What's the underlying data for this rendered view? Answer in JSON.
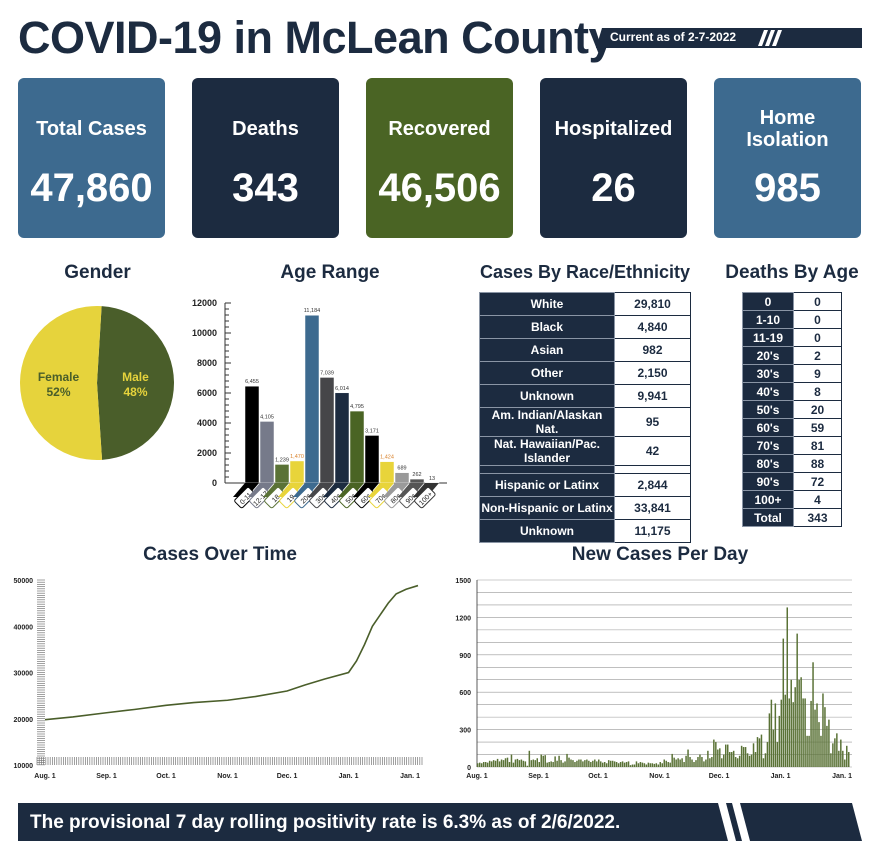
{
  "header": {
    "title": "COVID-19 in McLean County",
    "current_as_of": "Current as of 2-7-2022"
  },
  "cards": [
    {
      "label": "Total Cases",
      "value": "47,860",
      "color": "#3d6a8f"
    },
    {
      "label": "Deaths",
      "value": "343",
      "color": "#1c2b40"
    },
    {
      "label": "Recovered",
      "value": "46,506",
      "color": "#4a6424"
    },
    {
      "label": "Hospitalized",
      "value": "26",
      "color": "#1c2b40"
    },
    {
      "label": "Home Isolation",
      "value": "985",
      "color": "#3d6a8f"
    }
  ],
  "tables": {
    "race": {
      "title": "Cases By Race/Ethnicity",
      "rows": [
        [
          "White",
          "29,810"
        ],
        [
          "Black",
          "4,840"
        ],
        [
          "Asian",
          "982"
        ],
        [
          "Other",
          "2,150"
        ],
        [
          "Unknown",
          "9,941"
        ],
        [
          "Am. Indian/Alaskan Nat.",
          "95"
        ],
        [
          "Nat. Hawaiian/Pac. Islander",
          "42"
        ]
      ],
      "ethnicity_rows": [
        [
          "Hispanic or Latinx",
          "2,844"
        ],
        [
          "Non-Hispanic or Latinx",
          "33,841"
        ],
        [
          "Unknown",
          "11,175"
        ]
      ]
    },
    "deaths_by_age": {
      "title": "Deaths By Age",
      "rows": [
        [
          "0",
          "0"
        ],
        [
          "1-10",
          "0"
        ],
        [
          "11-19",
          "0"
        ],
        [
          "20's",
          "2"
        ],
        [
          "30's",
          "9"
        ],
        [
          "40's",
          "8"
        ],
        [
          "50's",
          "20"
        ],
        [
          "60's",
          "59"
        ],
        [
          "70's",
          "81"
        ],
        [
          "80's",
          "88"
        ],
        [
          "90's",
          "72"
        ],
        [
          "100+",
          "4"
        ],
        [
          "Total",
          "343"
        ]
      ]
    }
  },
  "footer": {
    "text": "The provisional 7 day rolling positivity rate is 6.3% as of 2/6/2022."
  },
  "chart_data": [
    {
      "type": "pie",
      "title": "Gender",
      "slices": [
        {
          "label": "Male",
          "value": 48,
          "display": "48%",
          "color": "#4a5e2a"
        },
        {
          "label": "Female",
          "value": 52,
          "display": "52%",
          "color": "#e6d33c"
        }
      ]
    },
    {
      "type": "bar",
      "title": "Age Range",
      "ylim": [
        0,
        12000
      ],
      "yticks": [
        0,
        2000,
        4000,
        6000,
        8000,
        10000,
        12000
      ],
      "categories": [
        "0-11",
        "12-17",
        "18",
        "19",
        "20s",
        "30s",
        "40s",
        "50s",
        "60s",
        "70s",
        "80s",
        "90s",
        "100+"
      ],
      "values": [
        6455,
        4105,
        1239,
        1470,
        11184,
        7039,
        6014,
        4795,
        3171,
        1424,
        689,
        262,
        13
      ],
      "labels": [
        "6,455",
        "4,105",
        "1,239",
        "1,470",
        "11,184",
        "7,039",
        "6,014",
        "4,795",
        "3,171",
        "1,424",
        "689",
        "262",
        "13"
      ],
      "colors": [
        "#000000",
        "#767a8a",
        "#5a7236",
        "#e8d43a",
        "#3d6a8f",
        "#464649",
        "#1c2b40",
        "#4a6424",
        "#000000",
        "#e8d43a",
        "#9a9a9a",
        "#555555",
        "#333333"
      ]
    },
    {
      "type": "line",
      "title": "Cases Over Time",
      "ylim": [
        10000,
        50000
      ],
      "yticks": [
        10000,
        20000,
        30000,
        40000,
        50000
      ],
      "xticks": [
        "Aug. 1",
        "Sep. 1",
        "Oct. 1",
        "Nov. 1",
        "Dec. 1",
        "Jan. 1",
        "Jan. 1"
      ],
      "points": [
        [
          "2021-08-01",
          19800
        ],
        [
          "2021-08-15",
          20400
        ],
        [
          "2021-09-01",
          21300
        ],
        [
          "2021-09-15",
          22000
        ],
        [
          "2021-10-01",
          22900
        ],
        [
          "2021-10-15",
          23500
        ],
        [
          "2021-11-01",
          24000
        ],
        [
          "2021-11-15",
          24800
        ],
        [
          "2021-12-01",
          26000
        ],
        [
          "2021-12-10",
          27300
        ],
        [
          "2021-12-20",
          28600
        ],
        [
          "2022-01-01",
          30000
        ],
        [
          "2022-01-05",
          32500
        ],
        [
          "2022-01-09",
          36000
        ],
        [
          "2022-01-13",
          40000
        ],
        [
          "2022-01-17",
          42500
        ],
        [
          "2022-01-21",
          45000
        ],
        [
          "2022-01-25",
          47000
        ],
        [
          "2022-01-30",
          48000
        ],
        [
          "2022-02-05",
          48800
        ]
      ],
      "color": "#4a5e2a"
    },
    {
      "type": "bar",
      "title": "New Cases Per Day",
      "ylim": [
        0,
        1500
      ],
      "yticks": [
        0,
        300,
        600,
        900,
        1200,
        1500
      ],
      "xticks": [
        "Aug. 1",
        "Sep. 1",
        "Oct. 1",
        "Nov. 1",
        "Dec. 1",
        "Jan. 1",
        "Jan. 1"
      ],
      "daily_by_month": {
        "Aug": [
          30,
          35,
          30,
          40,
          40,
          35,
          50,
          45,
          55,
          50,
          65,
          45,
          60,
          55,
          70,
          75,
          40,
          100,
          35,
          60,
          65,
          55,
          60,
          50,
          45,
          10,
          130,
          55,
          60,
          55,
          70
        ],
        "Sep": [
          40,
          100,
          90,
          95,
          35,
          40,
          45,
          40,
          85,
          50,
          90,
          55,
          35,
          45,
          105,
          75,
          60,
          55,
          40,
          50,
          60,
          60,
          45,
          55,
          60,
          50,
          40,
          50,
          60,
          45
        ],
        "Oct": [
          60,
          45,
          35,
          40,
          30,
          55,
          50,
          50,
          45,
          40,
          30,
          40,
          45,
          35,
          40,
          45,
          15,
          20,
          20,
          45,
          30,
          40,
          35,
          30,
          20,
          35,
          30,
          30,
          25,
          30,
          20
        ],
        "Nov": [
          40,
          30,
          60,
          50,
          40,
          35,
          105,
          75,
          60,
          70,
          60,
          70,
          40,
          90,
          140,
          80,
          60,
          40,
          55,
          80,
          100,
          80,
          45,
          60,
          130,
          70,
          80,
          220,
          200,
          140
        ],
        "Dec": [
          150,
          70,
          100,
          180,
          180,
          120,
          120,
          130,
          80,
          70,
          90,
          170,
          160,
          160,
          110,
          90,
          100,
          190,
          120,
          240,
          230,
          260,
          70,
          110,
          200,
          430,
          540,
          300,
          510,
          200,
          410
        ],
        "Jan": [
          540,
          1030,
          580,
          1280,
          550,
          700,
          520,
          640,
          1070,
          700,
          720,
          550,
          550,
          250,
          250,
          530,
          840,
          460,
          510,
          360,
          250,
          590,
          480,
          330,
          380,
          110,
          190,
          230,
          270,
          130,
          220
        ],
        "Feb": [
          130,
          60,
          170,
          120
        ]
      },
      "color": "#5a7236"
    }
  ]
}
